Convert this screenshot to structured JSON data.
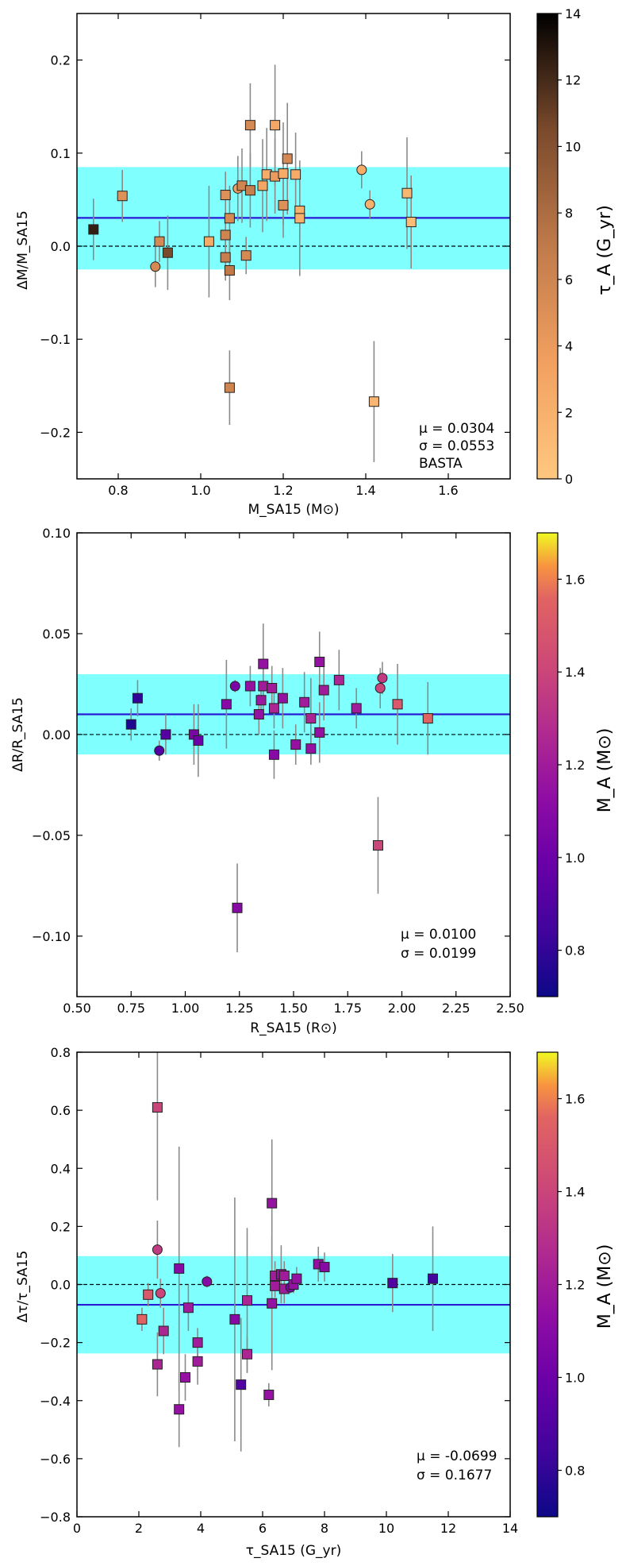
{
  "chart_data": [
    {
      "type": "scatter",
      "panel": "mass",
      "xlabel": "M_SA15 (M⊙)",
      "ylabel": "ΔM/M_SA15",
      "xlim": [
        0.7,
        1.75
      ],
      "ylim": [
        -0.25,
        0.25
      ],
      "xticks": [
        0.8,
        1.0,
        1.2,
        1.4,
        1.6
      ],
      "xtick_labels": [
        "0.8",
        "1.0",
        "1.2",
        "1.4",
        "1.6"
      ],
      "yticks": [
        -0.2,
        -0.1,
        0.0,
        0.1,
        0.2
      ],
      "ytick_labels": [
        "−0.2",
        "−0.1",
        "0.0",
        "0.1",
        "0.2"
      ],
      "mean": 0.0304,
      "band": [
        -0.025,
        0.085
      ],
      "annotation": [
        "μ = 0.0304",
        "σ = 0.0553",
        "BASTA"
      ],
      "colorbar": {
        "label": "τ_A (G_yr)",
        "cmap": "copper",
        "range": [
          0,
          14
        ],
        "ticks": [
          0,
          2,
          4,
          6,
          8,
          10,
          12,
          14
        ],
        "tick_labels": [
          "0",
          "2",
          "4",
          "6",
          "8",
          "10",
          "12",
          "14"
        ]
      },
      "points": [
        {
          "x": 0.74,
          "y": 0.018,
          "err": 0.033,
          "c": 12.5,
          "m": "s"
        },
        {
          "x": 0.81,
          "y": 0.054,
          "err": 0.028,
          "c": 4.8,
          "m": "s"
        },
        {
          "x": 0.89,
          "y": -0.022,
          "err": 0.022,
          "c": 5.5,
          "m": "o"
        },
        {
          "x": 0.9,
          "y": 0.005,
          "err": 0.022,
          "c": 5.5,
          "m": "s"
        },
        {
          "x": 0.92,
          "y": -0.007,
          "err": 0.04,
          "c": 10.5,
          "m": "s"
        },
        {
          "x": 1.02,
          "y": 0.005,
          "err": 0.06,
          "c": 2.5,
          "m": "s"
        },
        {
          "x": 1.06,
          "y": 0.055,
          "err": 0.025,
          "c": 5.0,
          "m": "s"
        },
        {
          "x": 1.06,
          "y": 0.012,
          "err": 0.022,
          "c": 6.0,
          "m": "s"
        },
        {
          "x": 1.06,
          "y": -0.012,
          "err": 0.025,
          "c": 6.5,
          "m": "s"
        },
        {
          "x": 1.07,
          "y": 0.03,
          "err": 0.035,
          "c": 5.5,
          "m": "s"
        },
        {
          "x": 1.07,
          "y": -0.026,
          "err": 0.032,
          "c": 7.0,
          "m": "s"
        },
        {
          "x": 1.07,
          "y": -0.152,
          "err": 0.04,
          "c": 6.0,
          "m": "s"
        },
        {
          "x": 1.09,
          "y": 0.062,
          "err": 0.035,
          "c": 3.5,
          "m": "o"
        },
        {
          "x": 1.1,
          "y": 0.065,
          "err": 0.04,
          "c": 6.0,
          "m": "s"
        },
        {
          "x": 1.11,
          "y": -0.01,
          "err": 0.02,
          "c": 5.5,
          "m": "s"
        },
        {
          "x": 1.12,
          "y": 0.13,
          "err": 0.045,
          "c": 5.5,
          "m": "s"
        },
        {
          "x": 1.12,
          "y": 0.06,
          "err": 0.04,
          "c": 6.5,
          "m": "s"
        },
        {
          "x": 1.15,
          "y": 0.065,
          "err": 0.05,
          "c": 3.0,
          "m": "s"
        },
        {
          "x": 1.16,
          "y": 0.077,
          "err": 0.05,
          "c": 2.5,
          "m": "s"
        },
        {
          "x": 1.18,
          "y": 0.13,
          "err": 0.065,
          "c": 3.0,
          "m": "s"
        },
        {
          "x": 1.18,
          "y": 0.075,
          "err": 0.04,
          "c": 4.0,
          "m": "s"
        },
        {
          "x": 1.2,
          "y": 0.044,
          "err": 0.035,
          "c": 5.0,
          "m": "s"
        },
        {
          "x": 1.2,
          "y": 0.078,
          "err": 0.055,
          "c": 2.5,
          "m": "s"
        },
        {
          "x": 1.21,
          "y": 0.094,
          "err": 0.06,
          "c": 5.5,
          "m": "s"
        },
        {
          "x": 1.23,
          "y": 0.077,
          "err": 0.045,
          "c": 2.5,
          "m": "s"
        },
        {
          "x": 1.24,
          "y": 0.038,
          "err": 0.03,
          "c": 2.0,
          "m": "s"
        },
        {
          "x": 1.24,
          "y": 0.03,
          "err": 0.062,
          "c": 2.0,
          "m": "s"
        },
        {
          "x": 1.39,
          "y": 0.082,
          "err": 0.02,
          "c": 2.5,
          "m": "o"
        },
        {
          "x": 1.41,
          "y": 0.045,
          "err": 0.015,
          "c": 2.0,
          "m": "o"
        },
        {
          "x": 1.42,
          "y": -0.167,
          "err": 0.065,
          "c": 1.5,
          "m": "s"
        },
        {
          "x": 1.5,
          "y": 0.057,
          "err": 0.06,
          "c": 1.5,
          "m": "s"
        },
        {
          "x": 1.51,
          "y": 0.026,
          "err": 0.05,
          "c": 1.0,
          "m": "s"
        }
      ]
    },
    {
      "type": "scatter",
      "panel": "radius",
      "xlabel": "R_SA15 (R⊙)",
      "ylabel": "ΔR/R_SA15",
      "xlim": [
        0.5,
        2.5
      ],
      "ylim": [
        -0.13,
        0.1
      ],
      "xticks": [
        0.5,
        0.75,
        1.0,
        1.25,
        1.5,
        1.75,
        2.0,
        2.25,
        2.5
      ],
      "xtick_labels": [
        "0.50",
        "0.75",
        "1.00",
        "1.25",
        "1.50",
        "1.75",
        "2.00",
        "2.25",
        "2.50"
      ],
      "yticks": [
        -0.1,
        -0.05,
        0.0,
        0.05,
        0.1
      ],
      "ytick_labels": [
        "−0.10",
        "−0.05",
        "0.00",
        "0.05",
        "0.10"
      ],
      "mean": 0.01,
      "band": [
        -0.0099,
        0.0299
      ],
      "annotation": [
        "μ = 0.0100",
        "σ = 0.0199"
      ],
      "colorbar": {
        "label": "M_A (M⊙)",
        "cmap": "plasma",
        "range": [
          0.7,
          1.7
        ],
        "ticks": [
          0.8,
          1.0,
          1.2,
          1.4,
          1.6
        ],
        "tick_labels": [
          "0.8",
          "1.0",
          "1.2",
          "1.4",
          "1.6"
        ]
      },
      "points": [
        {
          "x": 0.75,
          "y": 0.005,
          "err": 0.008,
          "c": 0.75,
          "m": "s"
        },
        {
          "x": 0.78,
          "y": 0.018,
          "err": 0.009,
          "c": 0.8,
          "m": "s"
        },
        {
          "x": 0.88,
          "y": -0.008,
          "err": 0.005,
          "c": 0.9,
          "m": "o"
        },
        {
          "x": 0.91,
          "y": 0.0,
          "err": 0.01,
          "c": 0.92,
          "m": "s"
        },
        {
          "x": 1.04,
          "y": 0.0,
          "err": 0.015,
          "c": 1.05,
          "m": "s"
        },
        {
          "x": 1.06,
          "y": -0.003,
          "err": 0.018,
          "c": 1.0,
          "m": "s"
        },
        {
          "x": 1.19,
          "y": 0.015,
          "err": 0.022,
          "c": 1.1,
          "m": "s"
        },
        {
          "x": 1.23,
          "y": 0.024,
          "err": 0.003,
          "c": 1.05,
          "m": "o"
        },
        {
          "x": 1.24,
          "y": -0.086,
          "err": 0.022,
          "c": 1.1,
          "m": "s"
        },
        {
          "x": 1.3,
          "y": 0.024,
          "err": 0.01,
          "c": 1.15,
          "m": "s"
        },
        {
          "x": 1.34,
          "y": 0.01,
          "err": 0.01,
          "c": 1.15,
          "m": "s"
        },
        {
          "x": 1.35,
          "y": 0.017,
          "err": 0.009,
          "c": 1.18,
          "m": "s"
        },
        {
          "x": 1.36,
          "y": 0.035,
          "err": 0.02,
          "c": 1.15,
          "m": "s"
        },
        {
          "x": 1.36,
          "y": 0.024,
          "err": 0.013,
          "c": 1.2,
          "m": "s"
        },
        {
          "x": 1.4,
          "y": 0.023,
          "err": 0.011,
          "c": 1.2,
          "m": "s"
        },
        {
          "x": 1.41,
          "y": 0.013,
          "err": 0.01,
          "c": 1.25,
          "m": "s"
        },
        {
          "x": 1.41,
          "y": -0.01,
          "err": 0.012,
          "c": 1.1,
          "m": "s"
        },
        {
          "x": 1.45,
          "y": 0.018,
          "err": 0.015,
          "c": 1.15,
          "m": "s"
        },
        {
          "x": 1.51,
          "y": -0.005,
          "err": 0.01,
          "c": 1.15,
          "m": "s"
        },
        {
          "x": 1.55,
          "y": 0.016,
          "err": 0.015,
          "c": 1.2,
          "m": "s"
        },
        {
          "x": 1.58,
          "y": 0.008,
          "err": 0.02,
          "c": 1.25,
          "m": "s"
        },
        {
          "x": 1.58,
          "y": -0.007,
          "err": 0.008,
          "c": 1.15,
          "m": "s"
        },
        {
          "x": 1.62,
          "y": 0.036,
          "err": 0.015,
          "c": 1.15,
          "m": "s"
        },
        {
          "x": 1.62,
          "y": 0.001,
          "err": 0.015,
          "c": 1.15,
          "m": "s"
        },
        {
          "x": 1.64,
          "y": 0.022,
          "err": 0.015,
          "c": 1.2,
          "m": "s"
        },
        {
          "x": 1.71,
          "y": 0.027,
          "err": 0.015,
          "c": 1.25,
          "m": "s"
        },
        {
          "x": 1.79,
          "y": 0.013,
          "err": 0.01,
          "c": 1.2,
          "m": "s"
        },
        {
          "x": 1.89,
          "y": -0.055,
          "err": 0.024,
          "c": 1.4,
          "m": "s"
        },
        {
          "x": 1.9,
          "y": 0.023,
          "err": 0.01,
          "c": 1.4,
          "m": "o"
        },
        {
          "x": 1.91,
          "y": 0.028,
          "err": 0.008,
          "c": 1.35,
          "m": "o"
        },
        {
          "x": 1.98,
          "y": 0.015,
          "err": 0.02,
          "c": 1.5,
          "m": "s"
        },
        {
          "x": 2.12,
          "y": 0.008,
          "err": 0.018,
          "c": 1.55,
          "m": "s"
        }
      ]
    },
    {
      "type": "scatter",
      "panel": "age",
      "xlabel": "τ_SA15 (G_yr)",
      "ylabel": "Δτ/τ_SA15",
      "xlim": [
        0,
        14
      ],
      "ylim": [
        -0.8,
        0.8
      ],
      "xticks": [
        0,
        2,
        4,
        6,
        8,
        10,
        12,
        14
      ],
      "xtick_labels": [
        "0",
        "2",
        "4",
        "6",
        "8",
        "10",
        "12",
        "14"
      ],
      "yticks": [
        -0.8,
        -0.6,
        -0.4,
        -0.2,
        0.0,
        0.2,
        0.4,
        0.6,
        0.8
      ],
      "ytick_labels": [
        "−0.8",
        "−0.6",
        "−0.4",
        "−0.2",
        "0.0",
        "0.2",
        "0.4",
        "0.6",
        "0.8"
      ],
      "mean": -0.0699,
      "band": [
        -0.2376,
        0.0978
      ],
      "annotation": [
        "μ = -0.0699",
        "σ = 0.1677"
      ],
      "colorbar": {
        "label": "M_A (M⊙)",
        "cmap": "plasma",
        "range": [
          0.7,
          1.7
        ],
        "ticks": [
          0.8,
          1.0,
          1.2,
          1.4,
          1.6
        ],
        "tick_labels": [
          "0.8",
          "1.0",
          "1.2",
          "1.4",
          "1.6"
        ]
      },
      "points": [
        {
          "x": 2.1,
          "y": -0.12,
          "err": 0.04,
          "c": 1.55,
          "m": "s"
        },
        {
          "x": 2.3,
          "y": -0.035,
          "err": 0.04,
          "c": 1.5,
          "m": "s"
        },
        {
          "x": 2.6,
          "y": 0.61,
          "err": 0.32,
          "c": 1.4,
          "m": "s"
        },
        {
          "x": 2.6,
          "y": 0.12,
          "err": 0.1,
          "c": 1.35,
          "m": "o"
        },
        {
          "x": 2.6,
          "y": -0.275,
          "err": 0.11,
          "c": 1.25,
          "m": "s"
        },
        {
          "x": 2.7,
          "y": -0.03,
          "err": 0.05,
          "c": 1.4,
          "m": "o"
        },
        {
          "x": 2.8,
          "y": -0.16,
          "err": 0.08,
          "c": 1.25,
          "m": "s"
        },
        {
          "x": 3.3,
          "y": 0.055,
          "err": 0.42,
          "c": 1.1,
          "m": "s"
        },
        {
          "x": 3.3,
          "y": -0.43,
          "err": 0.13,
          "c": 1.15,
          "m": "s"
        },
        {
          "x": 3.5,
          "y": -0.32,
          "err": 0.08,
          "c": 1.15,
          "m": "s"
        },
        {
          "x": 3.6,
          "y": -0.08,
          "err": 0.08,
          "c": 1.2,
          "m": "s"
        },
        {
          "x": 3.9,
          "y": -0.2,
          "err": 0.05,
          "c": 1.2,
          "m": "s"
        },
        {
          "x": 3.9,
          "y": -0.265,
          "err": 0.08,
          "c": 1.2,
          "m": "s"
        },
        {
          "x": 4.2,
          "y": 0.01,
          "err": 0.02,
          "c": 1.1,
          "m": "o"
        },
        {
          "x": 5.1,
          "y": -0.12,
          "err": 0.42,
          "c": 1.1,
          "m": "s"
        },
        {
          "x": 5.3,
          "y": -0.345,
          "err": 0.23,
          "c": 0.9,
          "m": "s"
        },
        {
          "x": 5.5,
          "y": -0.055,
          "err": 0.25,
          "c": 1.25,
          "m": "s"
        },
        {
          "x": 5.5,
          "y": -0.24,
          "err": 0.06,
          "c": 1.25,
          "m": "s"
        },
        {
          "x": 6.2,
          "y": -0.38,
          "err": 0.04,
          "c": 1.15,
          "m": "s"
        },
        {
          "x": 6.3,
          "y": 0.28,
          "err": 0.22,
          "c": 1.15,
          "m": "s"
        },
        {
          "x": 6.3,
          "y": -0.065,
          "err": 0.23,
          "c": 1.15,
          "m": "s"
        },
        {
          "x": 6.4,
          "y": 0.03,
          "err": 0.05,
          "c": 1.2,
          "m": "s"
        },
        {
          "x": 6.4,
          "y": -0.005,
          "err": 0.04,
          "c": 1.2,
          "m": "s"
        },
        {
          "x": 6.6,
          "y": 0.035,
          "err": 0.1,
          "c": 1.15,
          "m": "s"
        },
        {
          "x": 6.7,
          "y": 0.03,
          "err": 0.05,
          "c": 1.2,
          "m": "s"
        },
        {
          "x": 6.7,
          "y": -0.015,
          "err": 0.05,
          "c": 1.2,
          "m": "s"
        },
        {
          "x": 6.9,
          "y": -0.01,
          "err": 0.02,
          "c": 1.05,
          "m": "o"
        },
        {
          "x": 7.0,
          "y": 0.0,
          "err": 0.03,
          "c": 1.15,
          "m": "s"
        },
        {
          "x": 7.1,
          "y": 0.02,
          "err": 0.04,
          "c": 1.15,
          "m": "s"
        },
        {
          "x": 7.8,
          "y": 0.07,
          "err": 0.06,
          "c": 1.15,
          "m": "s"
        },
        {
          "x": 8.0,
          "y": 0.06,
          "err": 0.05,
          "c": 1.1,
          "m": "s"
        },
        {
          "x": 10.2,
          "y": 0.005,
          "err": 0.1,
          "c": 0.9,
          "m": "s"
        },
        {
          "x": 11.5,
          "y": 0.02,
          "err": 0.18,
          "c": 0.85,
          "m": "s"
        }
      ]
    }
  ]
}
